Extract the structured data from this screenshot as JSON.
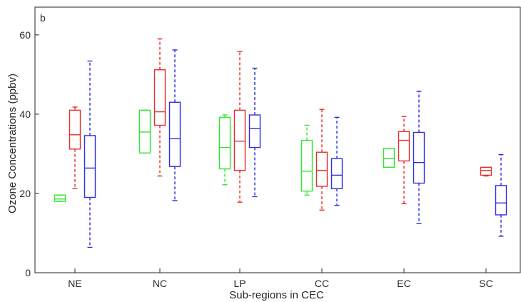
{
  "chart_data": {
    "type": "box",
    "panel_label": "b",
    "xlabel": "Sub-regions in CEC",
    "ylabel": "Ozone Concentrations (ppbv)",
    "ylim": [
      0,
      67
    ],
    "yticks": [
      0,
      20,
      40,
      60
    ],
    "categories": [
      "NE",
      "NC",
      "LP",
      "CC",
      "EC",
      "SC"
    ],
    "grid": false,
    "legend": "none",
    "series": [
      {
        "color": "#2ee62e",
        "boxes": [
          {
            "category": "NE",
            "min": 18.0,
            "q1": 18.0,
            "median": 18.6,
            "q3": 19.6,
            "max": 19.6
          },
          {
            "category": "NC",
            "min": 30.2,
            "q1": 30.2,
            "median": 35.5,
            "q3": 41.0,
            "max": 41.0
          },
          {
            "category": "LP",
            "min": 22.2,
            "q1": 26.2,
            "median": 31.6,
            "q3": 39.2,
            "max": 39.8
          },
          {
            "category": "CC",
            "min": 19.6,
            "q1": 20.6,
            "median": 25.6,
            "q3": 33.4,
            "max": 37.2
          },
          {
            "category": "EC",
            "min": 26.6,
            "q1": 26.6,
            "median": 28.8,
            "q3": 31.4,
            "max": 31.4
          },
          null
        ]
      },
      {
        "color": "#e62e2e",
        "boxes": [
          {
            "category": "NE",
            "min": 21.2,
            "q1": 31.2,
            "median": 34.8,
            "q3": 41.0,
            "max": 41.8
          },
          {
            "category": "NC",
            "min": 24.4,
            "q1": 37.2,
            "median": 40.6,
            "q3": 51.2,
            "max": 59.0
          },
          {
            "category": "LP",
            "min": 17.8,
            "q1": 25.8,
            "median": 33.2,
            "q3": 41.0,
            "max": 55.8
          },
          {
            "category": "CC",
            "min": 15.8,
            "q1": 21.8,
            "median": 25.8,
            "q3": 30.4,
            "max": 41.2
          },
          {
            "category": "EC",
            "min": 17.4,
            "q1": 28.2,
            "median": 33.4,
            "q3": 35.6,
            "max": 39.4
          },
          {
            "category": "SC",
            "min": 24.4,
            "q1": 24.6,
            "median": 25.8,
            "q3": 26.6,
            "max": 26.6
          }
        ]
      },
      {
        "color": "#2e2ee6",
        "boxes": [
          {
            "category": "NE",
            "min": 6.4,
            "q1": 19.0,
            "median": 26.4,
            "q3": 34.6,
            "max": 53.4
          },
          {
            "category": "NC",
            "min": 18.2,
            "q1": 26.8,
            "median": 33.8,
            "q3": 43.0,
            "max": 56.2
          },
          {
            "category": "LP",
            "min": 19.2,
            "q1": 31.6,
            "median": 36.4,
            "q3": 39.8,
            "max": 51.6
          },
          {
            "category": "CC",
            "min": 17.0,
            "q1": 21.2,
            "median": 24.6,
            "q3": 28.8,
            "max": 39.2
          },
          {
            "category": "EC",
            "min": 12.4,
            "q1": 22.6,
            "median": 27.8,
            "q3": 35.4,
            "max": 45.8
          },
          {
            "category": "SC",
            "min": 9.2,
            "q1": 14.6,
            "median": 17.6,
            "q3": 22.0,
            "max": 29.8
          }
        ]
      }
    ]
  }
}
